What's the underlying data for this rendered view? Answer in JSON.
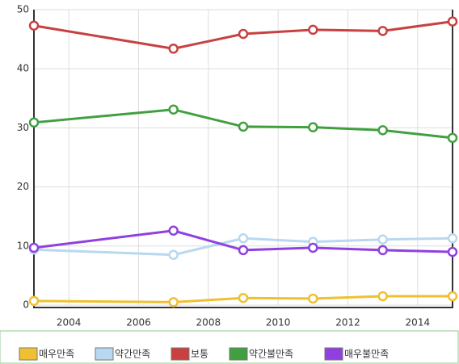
{
  "chart_data": {
    "type": "line",
    "x": [
      2003,
      2007,
      2009,
      2011,
      2013,
      2015
    ],
    "series": [
      {
        "name": "매우만족",
        "color": "#f0c030",
        "values": [
          0.7,
          0.5,
          1.2,
          1.1,
          1.5,
          1.5
        ]
      },
      {
        "name": "약간만족",
        "color": "#b8d8f0",
        "values": [
          9.4,
          8.5,
          11.3,
          10.7,
          11.1,
          11.3
        ]
      },
      {
        "name": "보통",
        "color": "#c84040",
        "values": [
          47.3,
          43.4,
          45.9,
          46.6,
          46.4,
          48.0
        ]
      },
      {
        "name": "약간불만족",
        "color": "#40a040",
        "values": [
          30.9,
          33.1,
          30.2,
          30.1,
          29.6,
          28.3
        ]
      },
      {
        "name": "매우불만족",
        "color": "#9040e0",
        "values": [
          9.7,
          12.6,
          9.3,
          9.7,
          9.3,
          9.0
        ]
      }
    ],
    "xlim": [
      2003,
      2015
    ],
    "xticks": [
      2004,
      2006,
      2008,
      2010,
      2012,
      2014
    ],
    "ylim": [
      0,
      50
    ],
    "yticks": [
      0,
      10,
      20,
      30,
      40,
      50
    ],
    "grid": true,
    "legend": "bottom"
  }
}
